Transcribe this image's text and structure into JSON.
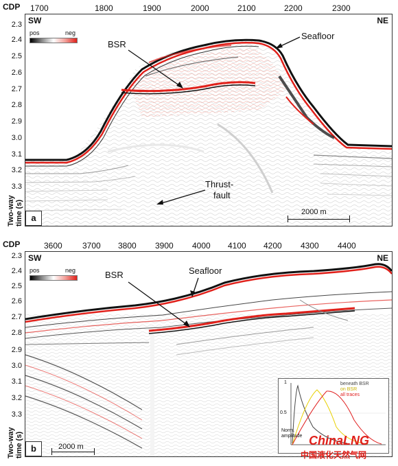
{
  "panel_a": {
    "cdp_label": "CDP",
    "cdp_ticks": [
      "1700",
      "1800",
      "1900",
      "2000",
      "2100",
      "2200",
      "2300"
    ],
    "y_ticks": [
      "2.3",
      "2.4",
      "2.5",
      "2.6",
      "2.7",
      "2.8",
      "2.9",
      "3.0",
      "3.1",
      "3.2",
      "3.3"
    ],
    "left_corner": "SW",
    "right_corner": "NE",
    "legend_pos": "pos",
    "legend_neg": "neg",
    "bsr_label": "BSR",
    "seafloor_label": "Seafloor",
    "thrust_label_1": "Thrust-",
    "thrust_label_2": "fault",
    "scale_label": "2000 m",
    "panel_letter": "a",
    "y_axis_label_1": "Two-way",
    "y_axis_label_2": "time (s)"
  },
  "panel_b": {
    "cdp_label": "CDP",
    "cdp_ticks": [
      "3600",
      "3700",
      "3800",
      "3900",
      "4000",
      "4100",
      "4200",
      "4300",
      "4400"
    ],
    "y_ticks": [
      "2.3",
      "2.4",
      "2.5",
      "2.6",
      "2.7",
      "2.8",
      "2.9",
      "3.0",
      "3.1",
      "3.2",
      "3.3"
    ],
    "left_corner": "SW",
    "right_corner": "NE",
    "legend_pos": "pos",
    "legend_neg": "neg",
    "bsr_label": "BSR",
    "seafloor_label": "Seafloor",
    "scale_label": "2000 m",
    "panel_letter": "b",
    "y_axis_label_1": "Two-way",
    "y_axis_label_2": "time (s)",
    "inset": {
      "y_label_1": "Norm.",
      "y_label_2": "amplitude",
      "tick_1": "1",
      "tick_05": "0.5",
      "legend": [
        "beneath BSR",
        "on BSR",
        "all traces"
      ],
      "legend_colors": [
        "#444444",
        "#e8d000",
        "#e02020"
      ]
    }
  },
  "watermark": {
    "brand": "ChinaLNG",
    "subtitle": "中国液化天然气网"
  },
  "colors": {
    "neg": "#e0201a",
    "pos": "#111111"
  }
}
